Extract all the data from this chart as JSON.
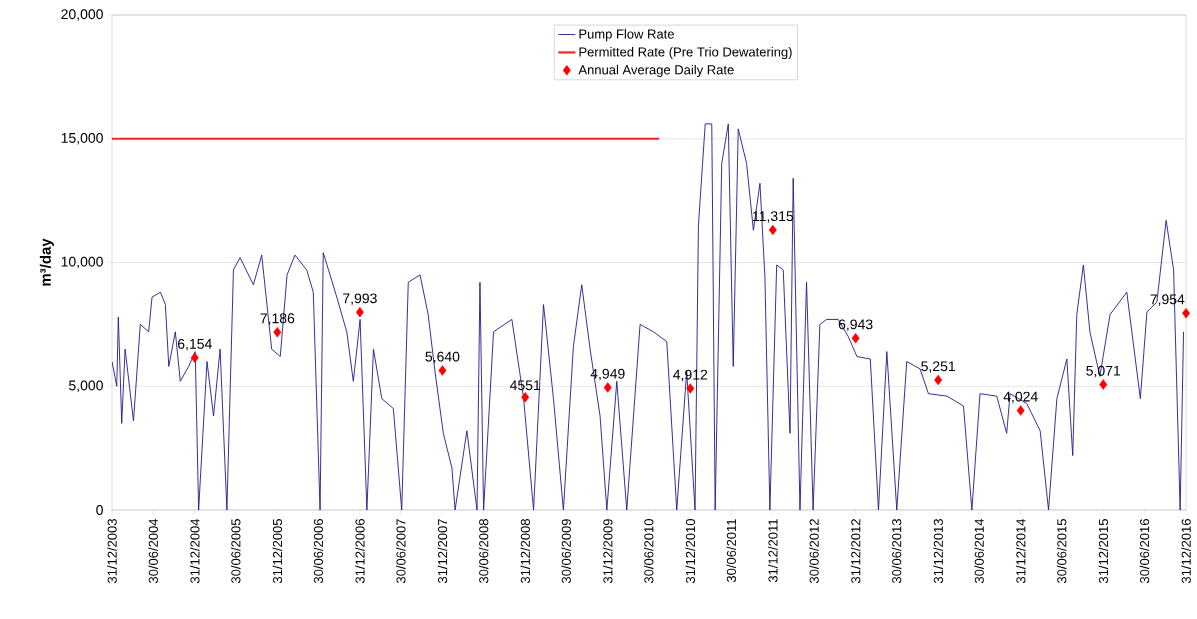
{
  "chart_data": {
    "type": "line",
    "ylabel": "m³/day",
    "legend": "top",
    "grid": "y",
    "xlim": [
      "2003-12-31",
      "2016-12-31"
    ],
    "xticks": [
      {
        "value": "2003-12-31",
        "label": "31/12/2003"
      },
      {
        "value": "2004-06-30",
        "label": "30/06/2004"
      },
      {
        "value": "2004-12-31",
        "label": "31/12/2004"
      },
      {
        "value": "2005-06-30",
        "label": "30/06/2005"
      },
      {
        "value": "2005-12-31",
        "label": "31/12/2005"
      },
      {
        "value": "2006-06-30",
        "label": "30/06/2006"
      },
      {
        "value": "2006-12-31",
        "label": "31/12/2006"
      },
      {
        "value": "2007-06-30",
        "label": "30/06/2007"
      },
      {
        "value": "2007-12-31",
        "label": "31/12/2007"
      },
      {
        "value": "2008-06-30",
        "label": "30/06/2008"
      },
      {
        "value": "2008-12-31",
        "label": "31/12/2008"
      },
      {
        "value": "2009-06-30",
        "label": "30/06/2009"
      },
      {
        "value": "2009-12-31",
        "label": "31/12/2009"
      },
      {
        "value": "2010-06-30",
        "label": "30/06/2010"
      },
      {
        "value": "2010-12-31",
        "label": "31/12/2010"
      },
      {
        "value": "2011-06-30",
        "label": "30/06/2011"
      },
      {
        "value": "2011-12-31",
        "label": "31/12/2011"
      },
      {
        "value": "2012-06-30",
        "label": "30/06/2012"
      },
      {
        "value": "2012-12-31",
        "label": "31/12/2012"
      },
      {
        "value": "2013-06-30",
        "label": "30/06/2013"
      },
      {
        "value": "2013-12-31",
        "label": "31/12/2013"
      },
      {
        "value": "2014-06-30",
        "label": "30/06/2014"
      },
      {
        "value": "2014-12-31",
        "label": "31/12/2014"
      },
      {
        "value": "2015-06-30",
        "label": "30/06/2015"
      },
      {
        "value": "2015-12-31",
        "label": "31/12/2015"
      },
      {
        "value": "2016-06-30",
        "label": "30/06/2016"
      },
      {
        "value": "2016-12-31",
        "label": "31/12/2016"
      }
    ],
    "ylim": [
      0,
      20000
    ],
    "yticks": [
      {
        "value": 0,
        "label": "0"
      },
      {
        "value": 5000,
        "label": "5,000"
      },
      {
        "value": 10000,
        "label": "10,000"
      },
      {
        "value": 15000,
        "label": "15,000"
      },
      {
        "value": 20000,
        "label": "20,000"
      }
    ],
    "series": [
      {
        "name": "Pump Flow Rate",
        "color": "#1f1a8c",
        "x": [
          "2003-12-31",
          "2004-01-21",
          "2004-01-28",
          "2004-02-12",
          "2004-02-27",
          "2004-04-04",
          "2004-05-04",
          "2004-06-10",
          "2004-06-25",
          "2004-08-01",
          "2004-08-23",
          "2004-09-07",
          "2004-10-06",
          "2004-10-28",
          "2004-12-04",
          "2005-01-02",
          "2005-01-17",
          "2005-02-23",
          "2005-03-24",
          "2005-04-22",
          "2005-05-22",
          "2005-06-20",
          "2005-07-19",
          "2005-09-16",
          "2005-10-23",
          "2005-12-06",
          "2006-01-13",
          "2006-02-12",
          "2006-03-19",
          "2006-05-10",
          "2006-06-08",
          "2006-07-08",
          "2006-07-22",
          "2006-09-20",
          "2006-11-03",
          "2006-12-02",
          "2007-01-01",
          "2007-01-31",
          "2007-03-01",
          "2007-04-07",
          "2007-05-28",
          "2007-07-04",
          "2007-08-02",
          "2007-09-23",
          "2007-10-29",
          "2007-11-28",
          "2008-01-04",
          "2008-02-11",
          "2008-02-25",
          "2008-04-17",
          "2008-06-01",
          "2008-06-14",
          "2008-06-30",
          "2008-08-13",
          "2008-11-02",
          "2008-12-24",
          "2009-02-06",
          "2009-03-22",
          "2009-05-05",
          "2009-06-18",
          "2009-08-01",
          "2009-09-07",
          "2009-10-14",
          "2009-11-27",
          "2009-12-27",
          "2010-02-09",
          "2010-03-25",
          "2010-05-23",
          "2010-07-21",
          "2010-09-18",
          "2010-11-01",
          "2010-12-15",
          "2011-01-21",
          "2011-02-05",
          "2011-03-07",
          "2011-04-05",
          "2011-04-20",
          "2011-05-19",
          "2011-06-17",
          "2011-07-09",
          "2011-07-31",
          "2011-09-06",
          "2011-10-06",
          "2011-11-04",
          "2011-11-26",
          "2011-12-18",
          "2012-01-17",
          "2012-02-15",
          "2012-03-16",
          "2012-03-30",
          "2012-04-29",
          "2012-05-28",
          "2012-06-26",
          "2012-07-26",
          "2012-08-25",
          "2012-10-15",
          "2012-11-29",
          "2013-01-06",
          "2013-03-06",
          "2013-04-11",
          "2013-05-18",
          "2013-07-01",
          "2013-08-14",
          "2013-10-12",
          "2013-11-18",
          "2014-02-08",
          "2014-04-22",
          "2014-05-29",
          "2014-07-04",
          "2014-09-16",
          "2014-10-30",
          "2014-11-14",
          "2015-01-27",
          "2015-03-27",
          "2015-05-03",
          "2015-06-09",
          "2015-07-23",
          "2015-08-18",
          "2015-09-05",
          "2015-10-04",
          "2015-11-02",
          "2015-12-16",
          "2016-01-30",
          "2016-04-13",
          "2016-06-12",
          "2016-07-11",
          "2016-08-24",
          "2016-10-04",
          "2016-11-06",
          "2016-12-05",
          "2016-12-20"
        ],
        "values": [
          6000,
          5000,
          7800,
          3500,
          6500,
          3600,
          7500,
          7200,
          8600,
          8800,
          8300,
          5800,
          7200,
          5200,
          5800,
          6400,
          0,
          6000,
          3800,
          6500,
          0,
          9700,
          10200,
          9100,
          10300,
          6500,
          6200,
          9500,
          10300,
          9700,
          8800,
          0,
          10400,
          8600,
          7200,
          5200,
          7700,
          0,
          6500,
          4500,
          4100,
          0,
          9200,
          9500,
          7900,
          5600,
          3100,
          1700,
          0,
          3200,
          0,
          9200,
          0,
          7200,
          7700,
          4500,
          0,
          8300,
          4500,
          0,
          6600,
          9100,
          6500,
          3800,
          0,
          5200,
          0,
          7500,
          7200,
          6800,
          0,
          5600,
          0,
          11500,
          15600,
          15600,
          0,
          14000,
          15600,
          5800,
          15400,
          14000,
          11300,
          13200,
          9400,
          0,
          9900,
          9700,
          3100,
          13400,
          0,
          9200,
          0,
          7500,
          7700,
          7700,
          7000,
          6200,
          6100,
          0,
          6400,
          0,
          6000,
          5700,
          4700,
          4600,
          4200,
          0,
          4700,
          4600,
          3100,
          4700,
          4300,
          3200,
          0,
          4500,
          6100,
          2200,
          7900,
          9900,
          7200,
          5400,
          7900,
          8800,
          4500,
          8000,
          8400,
          11700,
          9700,
          0,
          7200
        ]
      },
      {
        "name": "Permitted Rate (Pre Trio Dewatering)",
        "color": "#ff2020",
        "x": [
          "2003-12-31",
          "2010-08-15"
        ],
        "values": [
          15000,
          15000
        ]
      },
      {
        "name": "Annual Average Daily Rate",
        "type": "scatter",
        "marker": "diamond",
        "color": "#ff0000",
        "x": [
          "2004-12-31",
          "2005-12-31",
          "2006-12-31",
          "2007-12-31",
          "2008-12-31",
          "2009-12-31",
          "2010-12-31",
          "2011-12-31",
          "2012-12-31",
          "2013-12-31",
          "2014-12-31",
          "2015-12-31",
          "2016-12-31"
        ],
        "values": [
          6154,
          7186,
          7993,
          5640,
          4551,
          4949,
          4912,
          11315,
          6943,
          5251,
          4024,
          5071,
          7954
        ],
        "value_labels": [
          "6,154",
          "7,186",
          "7,993",
          "5,640",
          "4551",
          "4,949",
          "4,912",
          "11,315",
          "6,943",
          "5,251",
          "4,024",
          "5,071",
          "7,954"
        ]
      }
    ]
  }
}
